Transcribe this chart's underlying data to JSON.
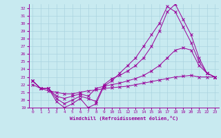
{
  "xlabel": "Windchill (Refroidissement éolien,°C)",
  "bg_color": "#c8eaf0",
  "line_color": "#990099",
  "grid_color": "#aad4e0",
  "xlim": [
    -0.5,
    23.5
  ],
  "ylim": [
    19,
    32.5
  ],
  "xticks": [
    0,
    1,
    2,
    3,
    4,
    5,
    6,
    7,
    8,
    9,
    10,
    11,
    12,
    13,
    14,
    15,
    16,
    17,
    18,
    19,
    20,
    21,
    22,
    23
  ],
  "yticks": [
    19,
    20,
    21,
    22,
    23,
    24,
    25,
    26,
    27,
    28,
    29,
    30,
    31,
    32
  ],
  "line1_x": [
    0,
    1,
    2,
    3,
    4,
    5,
    6,
    7,
    8,
    9,
    10,
    11,
    12,
    13,
    14,
    15,
    16,
    17,
    18,
    19,
    20,
    21,
    22,
    23
  ],
  "line1_y": [
    22.5,
    21.5,
    21.5,
    19.8,
    19.0,
    19.5,
    20.2,
    19.0,
    19.5,
    21.8,
    22.5,
    23.5,
    24.5,
    25.5,
    27.0,
    28.5,
    30.0,
    32.2,
    31.5,
    29.5,
    27.5,
    25.0,
    23.5,
    23.0
  ],
  "line2_x": [
    0,
    1,
    2,
    3,
    4,
    5,
    6,
    7,
    8,
    9,
    10,
    11,
    12,
    13,
    14,
    15,
    16,
    17,
    18,
    19,
    20,
    21,
    22,
    23
  ],
  "line2_y": [
    22.5,
    21.5,
    21.5,
    20.2,
    19.5,
    20.0,
    20.5,
    20.2,
    19.8,
    22.0,
    22.8,
    23.2,
    23.8,
    24.5,
    25.5,
    27.0,
    29.0,
    31.5,
    32.5,
    30.5,
    28.5,
    25.5,
    23.5,
    23.0
  ],
  "line3_x": [
    0,
    1,
    2,
    3,
    4,
    5,
    6,
    7,
    8,
    9,
    10,
    11,
    12,
    13,
    14,
    15,
    16,
    17,
    18,
    19,
    20,
    21,
    22,
    23
  ],
  "line3_y": [
    22.5,
    21.5,
    21.5,
    20.5,
    20.2,
    20.5,
    20.8,
    20.5,
    21.5,
    21.8,
    22.0,
    22.2,
    22.5,
    22.8,
    23.2,
    23.8,
    24.5,
    25.5,
    26.5,
    26.8,
    26.5,
    24.5,
    23.5,
    23.0
  ],
  "line4_x": [
    0,
    1,
    2,
    3,
    4,
    5,
    6,
    7,
    8,
    9,
    10,
    11,
    12,
    13,
    14,
    15,
    16,
    17,
    18,
    19,
    20,
    21,
    22,
    23
  ],
  "line4_y": [
    22.0,
    21.5,
    21.2,
    21.0,
    20.8,
    20.8,
    21.0,
    21.2,
    21.3,
    21.5,
    21.6,
    21.7,
    21.8,
    22.0,
    22.2,
    22.4,
    22.6,
    22.8,
    23.0,
    23.1,
    23.2,
    23.0,
    23.0,
    23.0
  ]
}
